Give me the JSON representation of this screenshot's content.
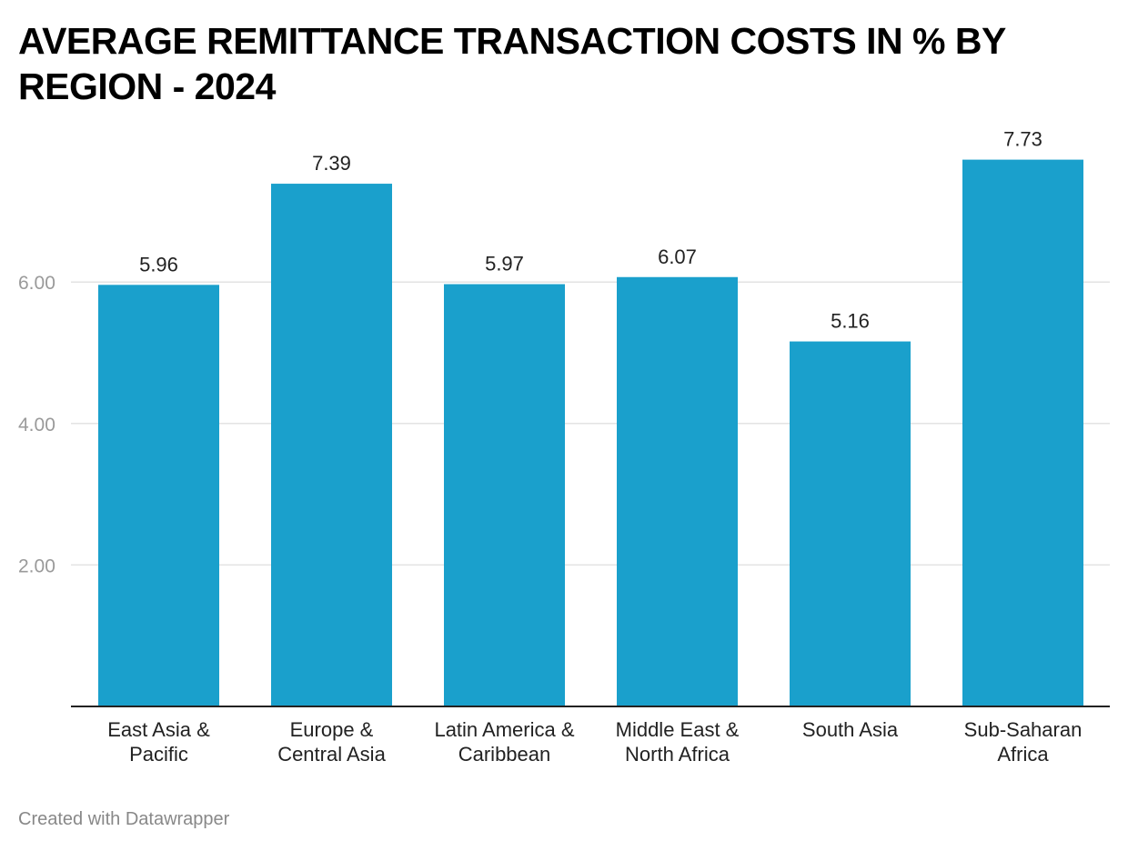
{
  "chart_data": {
    "type": "bar",
    "title": "AVERAGE REMITTANCE TRANSACTION COSTS IN % BY REGION - 2024",
    "categories": [
      [
        "East Asia &",
        "Pacific"
      ],
      [
        "Europe &",
        "Central Asia"
      ],
      [
        "Latin America &",
        "Caribbean"
      ],
      [
        "Middle East &",
        "North Africa"
      ],
      [
        "South Asia"
      ],
      [
        "Sub-Saharan",
        "Africa"
      ]
    ],
    "values": [
      5.96,
      7.39,
      5.97,
      6.07,
      5.16,
      7.73
    ],
    "value_labels": [
      "5.96",
      "7.39",
      "5.97",
      "6.07",
      "5.16",
      "7.73"
    ],
    "y_ticks": [
      2,
      4,
      6
    ],
    "y_tick_labels": [
      "2.00",
      "4.00",
      "6.00"
    ],
    "ylim": [
      0,
      8
    ],
    "grid": true,
    "xlabel": "",
    "ylabel": "",
    "bar_color": "#1aa0cc"
  },
  "footer": {
    "credit": "Created with Datawrapper"
  }
}
